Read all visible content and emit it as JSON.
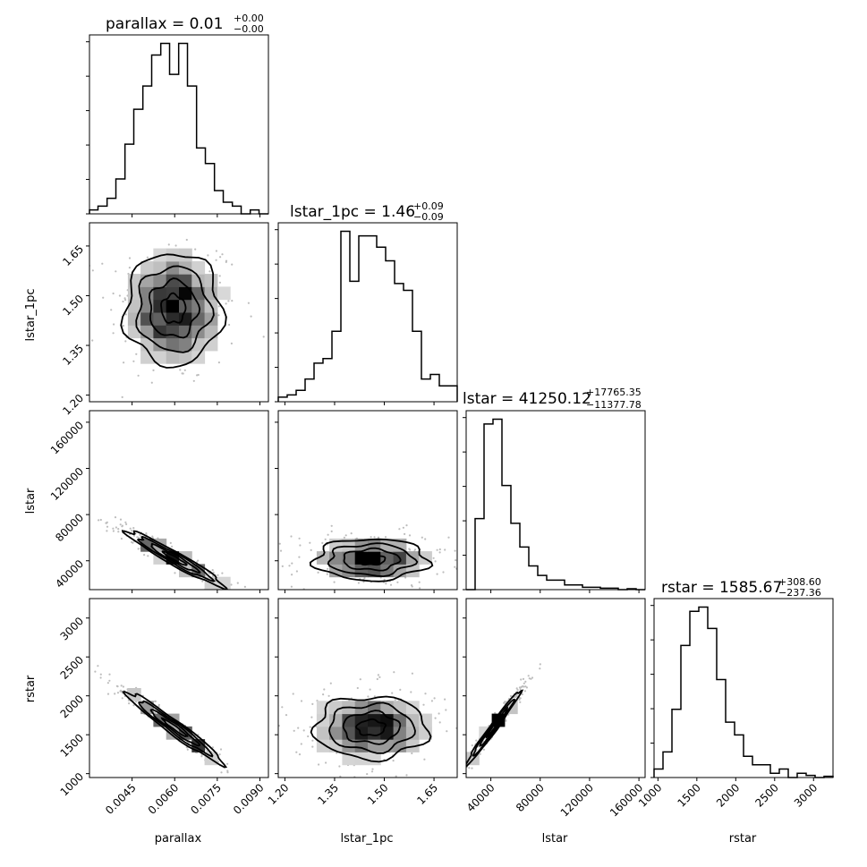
{
  "figure": {
    "kind": "corner-plot",
    "colors": {
      "line": "#000000",
      "density_light": "#f2f2f2",
      "density_dark": "#000000",
      "scatter": "#bdbdbd"
    }
  },
  "chart_data": [
    {
      "type": "histogram",
      "param": "parallax",
      "title_main": "parallax = 0.01",
      "title_sup": "+0.00",
      "title_sub": "−0.00",
      "xlim": [
        0.003,
        0.0093
      ],
      "xticks": [
        0.0045,
        0.006,
        0.0075,
        0.009
      ],
      "xlabel": "parallax",
      "xtick_labels": [
        "0.0045",
        "0.0060",
        "0.0075",
        "0.0090"
      ],
      "bin_edges": [
        0.003,
        0.0033,
        0.00362,
        0.00393,
        0.00425,
        0.00456,
        0.00488,
        0.00519,
        0.00551,
        0.00582,
        0.00614,
        0.00645,
        0.00677,
        0.00708,
        0.0074,
        0.00771,
        0.00803,
        0.00834,
        0.00866,
        0.00897,
        0.0093
      ],
      "counts": [
        1,
        2,
        4,
        9,
        18,
        27,
        33,
        41,
        44,
        36,
        44,
        33,
        17,
        13,
        6,
        3,
        2,
        0,
        1,
        0
      ]
    },
    {
      "type": "histogram",
      "param": "lstar_1pc",
      "title_main": "lstar_1pc = 1.46",
      "title_sup": "+0.09",
      "title_sub": "−0.09",
      "xlim": [
        1.18,
        1.72
      ],
      "xticks": [
        1.2,
        1.35,
        1.5,
        1.65
      ],
      "xtick_labels": [
        "1.20",
        "1.35",
        "1.50",
        "1.65"
      ],
      "xlabel": "lstar_1pc",
      "bin_edges": [
        1.18,
        1.207,
        1.234,
        1.261,
        1.288,
        1.315,
        1.342,
        1.369,
        1.396,
        1.423,
        1.45,
        1.477,
        1.504,
        1.531,
        1.558,
        1.585,
        1.612,
        1.639,
        1.666,
        1.693,
        1.72
      ],
      "counts": [
        2,
        3,
        5,
        10,
        17,
        19,
        31,
        75,
        53,
        73,
        73,
        68,
        62,
        52,
        49,
        31,
        10,
        12,
        7,
        7
      ]
    },
    {
      "type": "histogram",
      "param": "lstar",
      "title_main": "lstar = 41250.12",
      "title_sup": "+17765.35",
      "title_sub": "−11377.78",
      "xlim": [
        20000,
        165000
      ],
      "xticks": [
        40000,
        80000,
        120000,
        160000
      ],
      "xtick_labels": [
        "40000",
        "80000",
        "120000",
        "160000"
      ],
      "xlabel": "lstar",
      "bin_edges": [
        20000,
        27250,
        34500,
        41750,
        49000,
        56250,
        63500,
        70750,
        78000,
        85250,
        92500,
        99750,
        107000,
        114250,
        121500,
        128750,
        136000,
        143250,
        150500,
        157750,
        165000
      ],
      "counts": [
        0,
        15,
        35,
        36,
        22,
        14,
        9,
        5,
        3,
        2,
        2,
        1,
        1,
        0.5,
        0.5,
        0.3,
        0.3,
        0,
        0.2,
        0
      ]
    },
    {
      "type": "histogram",
      "param": "rstar",
      "title_main": "rstar = 1585.67",
      "title_sup": "+308.60",
      "title_sub": "−237.36",
      "xlim": [
        950,
        3250
      ],
      "xticks": [
        1000,
        1500,
        2000,
        2500,
        3000
      ],
      "xtick_labels": [
        "1000",
        "1500",
        "2000",
        "2500",
        "3000"
      ],
      "xlabel": "rstar",
      "bin_edges": [
        950,
        1065,
        1180,
        1295,
        1410,
        1525,
        1640,
        1755,
        1870,
        1985,
        2100,
        2215,
        2330,
        2445,
        2560,
        2675,
        2790,
        2905,
        3020,
        3135,
        3250
      ],
      "counts": [
        2,
        6,
        16,
        31,
        39,
        40,
        35,
        23,
        13,
        10,
        5,
        3,
        3,
        1,
        2,
        0,
        1,
        0.5,
        0,
        0.3
      ]
    },
    {
      "type": "contour-2d",
      "params": [
        "parallax",
        "lstar_1pc"
      ],
      "ylabel": "lstar_1pc",
      "yticks": [
        1.2,
        1.35,
        1.5,
        1.65
      ],
      "ytick_labels": [
        "1.20",
        "1.35",
        "1.50",
        "1.65"
      ],
      "center": [
        0.00595,
        1.46
      ],
      "sigma": [
        0.00085,
        0.085
      ],
      "rho": 0.0,
      "ylim": [
        1.18,
        1.72
      ]
    },
    {
      "type": "contour-2d",
      "params": [
        "parallax",
        "lstar"
      ],
      "ylabel": "lstar",
      "yticks": [
        40000,
        80000,
        120000,
        160000
      ],
      "ytick_labels": [
        "40000",
        "80000",
        "120000",
        "160000"
      ],
      "center": [
        0.006,
        42000
      ],
      "sigma": [
        0.00085,
        12000
      ],
      "rho": -0.96,
      "ylim": [
        15000,
        170000
      ]
    },
    {
      "type": "contour-2d",
      "params": [
        "lstar_1pc",
        "lstar"
      ],
      "center": [
        1.46,
        41000
      ],
      "sigma": [
        0.085,
        9000
      ],
      "rho": 0.0
    },
    {
      "type": "contour-2d",
      "params": [
        "parallax",
        "rstar"
      ],
      "ylabel": "rstar",
      "yticks": [
        1000,
        1500,
        2000,
        2500,
        3000
      ],
      "ytick_labels": [
        "1000",
        "1500",
        "2000",
        "2500",
        "3000"
      ],
      "center": [
        0.006,
        1590
      ],
      "sigma": [
        0.00085,
        230
      ],
      "rho": -0.97,
      "ylim": [
        950,
        3250
      ]
    },
    {
      "type": "contour-2d",
      "params": [
        "lstar_1pc",
        "rstar"
      ],
      "center": [
        1.46,
        1590
      ],
      "sigma": [
        0.085,
        200
      ],
      "rho": 0.0
    },
    {
      "type": "contour-2d",
      "params": [
        "lstar",
        "rstar"
      ],
      "center": [
        42000,
        1590
      ],
      "sigma": [
        11000,
        240
      ],
      "rho": 0.985
    }
  ]
}
